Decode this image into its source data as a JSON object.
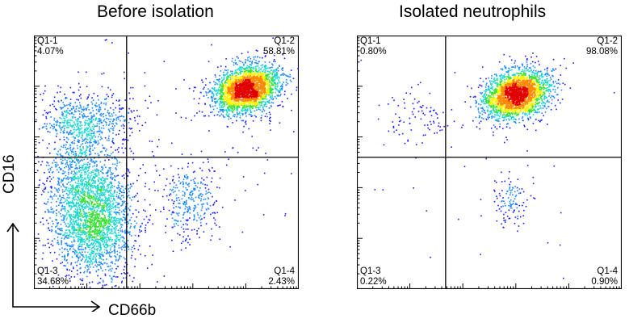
{
  "chart_data": [
    {
      "type": "scatter",
      "title": "Before isolation",
      "xlabel": "CD66b",
      "ylabel": "CD16",
      "quadrants": [
        {
          "name": "Q1-1",
          "percent": "4.07%"
        },
        {
          "name": "Q1-2",
          "percent": "58.81%"
        },
        {
          "name": "Q1-3",
          "percent": "34.68%"
        },
        {
          "name": "Q1-4",
          "percent": "2.43%"
        }
      ],
      "populations": [
        {
          "cx": 0.8,
          "cy": 0.79,
          "sx": 0.065,
          "sy": 0.045,
          "angle": 0.35,
          "n": 2600
        },
        {
          "cx": 0.24,
          "cy": 0.27,
          "sx": 0.07,
          "sy": 0.11,
          "angle": 0.0,
          "n": 1700
        },
        {
          "cx": 0.17,
          "cy": 0.4,
          "sx": 0.07,
          "sy": 0.17,
          "angle": 0.0,
          "n": 1200
        },
        {
          "cx": 0.23,
          "cy": 0.67,
          "sx": 0.08,
          "sy": 0.05,
          "angle": 0.0,
          "n": 350
        },
        {
          "cx": 0.12,
          "cy": 0.68,
          "sx": 0.05,
          "sy": 0.04,
          "angle": 0.0,
          "n": 120
        },
        {
          "cx": 0.59,
          "cy": 0.35,
          "sx": 0.05,
          "sy": 0.07,
          "angle": 0.0,
          "n": 300
        },
        {
          "cx": 0.5,
          "cy": 0.5,
          "sx": 0.3,
          "sy": 0.3,
          "angle": 0.0,
          "n": 220
        }
      ],
      "gate": {
        "x": 0.35,
        "y": 0.52
      },
      "colorscale": [
        "#1a1aff",
        "#1e88ff",
        "#18d6d0",
        "#38e038",
        "#fff200",
        "#ff8800",
        "#e00000"
      ]
    },
    {
      "type": "scatter",
      "title": "Isolated neutrophils",
      "xlabel": "",
      "ylabel": "",
      "quadrants": [
        {
          "name": "Q1-1",
          "percent": "0.80%"
        },
        {
          "name": "Q1-2",
          "percent": "98.08%"
        },
        {
          "name": "Q1-3",
          "percent": "0.22%"
        },
        {
          "name": "Q1-4",
          "percent": "0.90%"
        }
      ],
      "populations": [
        {
          "cx": 0.6,
          "cy": 0.77,
          "sx": 0.065,
          "sy": 0.045,
          "angle": 0.35,
          "n": 2600
        },
        {
          "cx": 0.24,
          "cy": 0.67,
          "sx": 0.07,
          "sy": 0.05,
          "angle": 0.0,
          "n": 90
        },
        {
          "cx": 0.58,
          "cy": 0.35,
          "sx": 0.035,
          "sy": 0.05,
          "angle": 0.0,
          "n": 110
        },
        {
          "cx": 0.5,
          "cy": 0.45,
          "sx": 0.3,
          "sy": 0.28,
          "angle": 0.0,
          "n": 45
        }
      ],
      "gate": {
        "x": 0.335,
        "y": 0.52
      },
      "colorscale": [
        "#1a1aff",
        "#1e88ff",
        "#18d6d0",
        "#38e038",
        "#fff200",
        "#ff8800",
        "#e00000"
      ]
    }
  ]
}
